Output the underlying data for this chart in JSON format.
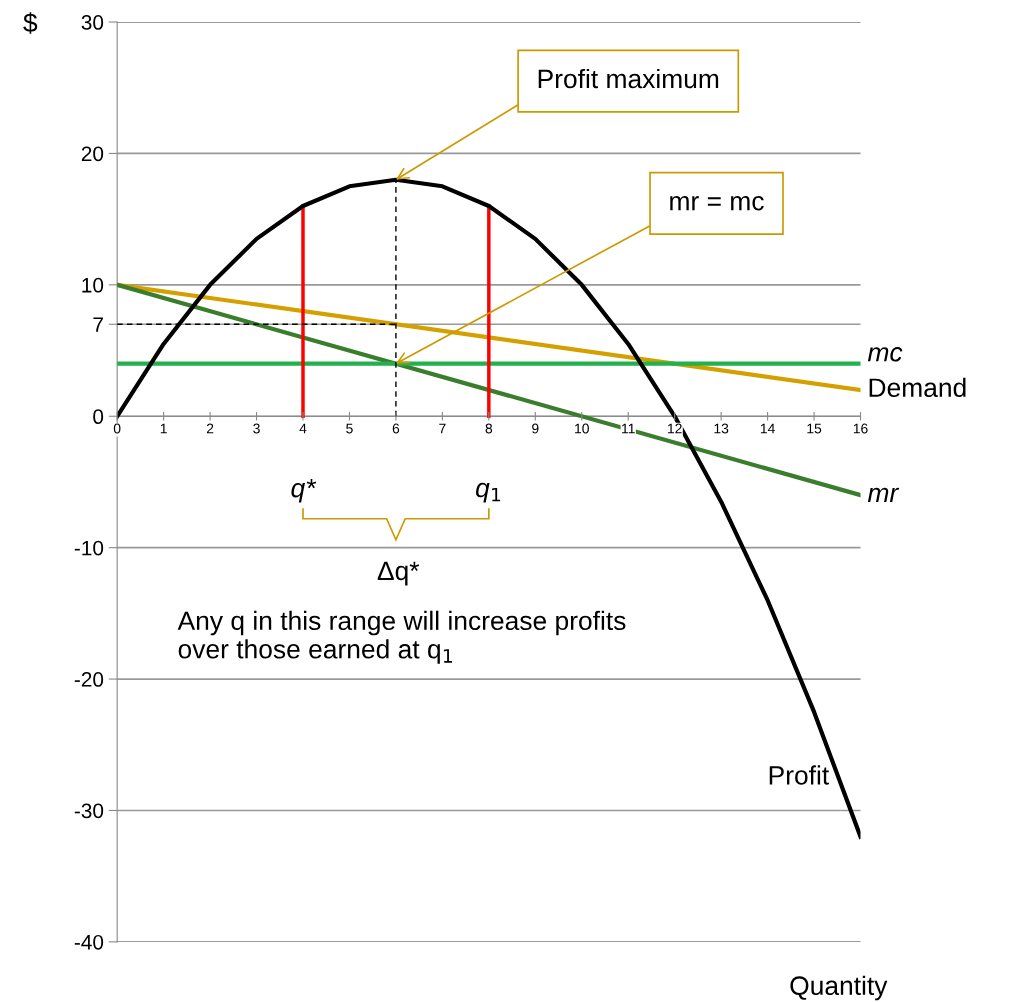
{
  "chart_data": {
    "type": "line",
    "xlabel": "Quantity",
    "ylabel": "$",
    "x": [
      0,
      1,
      2,
      3,
      4,
      5,
      6,
      7,
      8,
      9,
      10,
      11,
      12,
      13,
      14,
      15,
      16
    ],
    "xlim": [
      0,
      16
    ],
    "xticks": [
      0,
      1,
      2,
      3,
      4,
      5,
      6,
      7,
      8,
      9,
      10,
      11,
      12,
      13,
      14,
      15,
      16
    ],
    "ylim": [
      -40,
      30
    ],
    "yticks": [
      -40,
      -30,
      -20,
      -10,
      0,
      7,
      10,
      20,
      30
    ],
    "grid": "y",
    "marker": "none",
    "series": [
      {
        "name": "Profit",
        "color": "#000000",
        "values": [
          0,
          5.5,
          10,
          13.5,
          16,
          17.5,
          18,
          17.5,
          16,
          13.5,
          10,
          5.5,
          0,
          -6.5,
          -14,
          -22.5,
          -32
        ]
      },
      {
        "name": "Demand",
        "color": "#d4a000",
        "x": [
          0,
          16
        ],
        "values": [
          10,
          2
        ]
      },
      {
        "name": "mr",
        "color": "#3a7d2c",
        "x": [
          0,
          16
        ],
        "values": [
          10,
          -6
        ]
      },
      {
        "name": "mc",
        "color": "#22b14c",
        "x": [
          0,
          16
        ],
        "values": [
          4,
          4
        ]
      },
      {
        "color": "#ff0000",
        "x": [
          4,
          4
        ],
        "values": [
          0,
          16
        ]
      },
      {
        "color": "#ff0000",
        "x": [
          8,
          8
        ],
        "values": [
          0,
          16
        ]
      },
      {
        "color": "#000000",
        "x": [
          6,
          6
        ],
        "values": [
          0,
          18
        ],
        "line_style": "dashed"
      },
      {
        "color": "#000000",
        "x": [
          0,
          6
        ],
        "values": [
          7,
          7
        ],
        "line_style": "dashed"
      }
    ],
    "annotations": [
      {
        "text": "Profit maximum",
        "x": 6,
        "y": 18
      },
      {
        "text": "mr = mc",
        "x": 6,
        "y": 4
      },
      "q*",
      "q$_{1}$",
      "Δq*",
      "Any q in this range will increase profits over those earned at q$_{1}$"
    ]
  }
}
